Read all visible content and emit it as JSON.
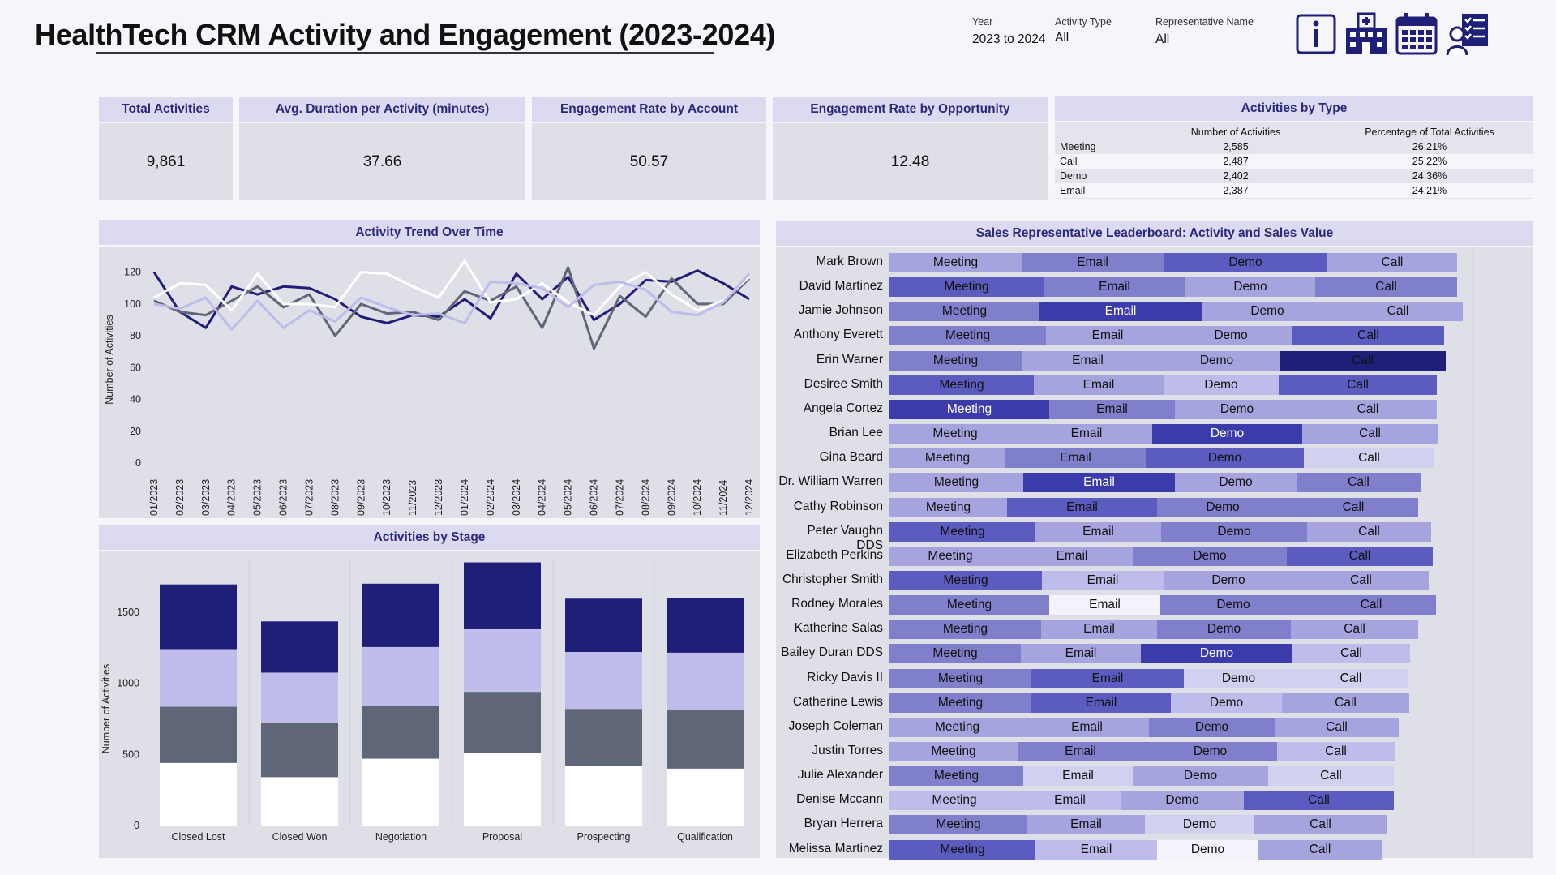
{
  "title": "HealthTech CRM Activity and Engagement (2023-2024)",
  "filters": [
    {
      "label": "Year",
      "value": "2023 to 2024"
    },
    {
      "label": "Activity Type",
      "value": "All"
    },
    {
      "label": "Representative Name",
      "value": "All"
    }
  ],
  "icons": [
    "info-icon",
    "hospital-icon",
    "calendar-icon",
    "checklist-person-icon"
  ],
  "kpis": [
    {
      "label": "Total Activities",
      "value": "9,861"
    },
    {
      "label": "Avg. Duration per Activity (minutes)",
      "value": "37.66"
    },
    {
      "label": "Engagement Rate by Account",
      "value": "50.57"
    },
    {
      "label": "Engagement Rate by Opportunity",
      "value": "12.48"
    }
  ],
  "activities_by_type": {
    "title": "Activities by Type",
    "columns": [
      "",
      "Number of Activities",
      "Percentage of Total Activities"
    ],
    "rows": [
      [
        "Meeting",
        "2,585",
        "26.21%"
      ],
      [
        "Call",
        "2,487",
        "25.22%"
      ],
      [
        "Demo",
        "2,402",
        "24.36%"
      ],
      [
        "Email",
        "2,387",
        "24.21%"
      ]
    ]
  },
  "colors": {
    "navy": "#1f1f7a",
    "lavender": "#bfbbea",
    "slate": "#5f6678",
    "white": "#ffffff",
    "pale": "#eceaf9"
  },
  "chart_data": [
    {
      "type": "line",
      "title": "Activity Trend Over Time",
      "ylabel": "Number of Activities",
      "xlabel": "",
      "ylim": [
        0,
        130
      ],
      "yticks": [
        0,
        20,
        40,
        60,
        80,
        100,
        120
      ],
      "x": [
        "01/2023",
        "02/2023",
        "03/2023",
        "04/2023",
        "05/2023",
        "06/2023",
        "07/2023",
        "08/2023",
        "09/2023",
        "10/2023",
        "11/2023",
        "12/2023",
        "01/2024",
        "02/2024",
        "03/2024",
        "04/2024",
        "05/2024",
        "06/2024",
        "07/2024",
        "08/2024",
        "09/2024",
        "10/2024",
        "11/2024",
        "12/2024"
      ],
      "series": [
        {
          "name": "Call",
          "color": "#1f1f7a",
          "values": [
            120,
            95,
            85,
            111,
            106,
            111,
            110,
            103,
            92,
            88,
            93,
            92,
            103,
            91,
            119,
            103,
            117,
            90,
            100,
            115,
            114,
            121,
            113,
            103
          ]
        },
        {
          "name": "Demo",
          "color": "#5f6678",
          "values": [
            102,
            95,
            93,
            102,
            111,
            98,
            106,
            80,
            100,
            94,
            95,
            90,
            108,
            102,
            111,
            85,
            123,
            72,
            105,
            92,
            116,
            100,
            100,
            116
          ]
        },
        {
          "name": "Email",
          "color": "#ffffff",
          "values": [
            104,
            113,
            112,
            96,
            119,
            100,
            100,
            98,
            120,
            119,
            111,
            104,
            127,
            101,
            103,
            113,
            101,
            93,
            111,
            120,
            106,
            96,
            102,
            117
          ]
        },
        {
          "name": "Meeting",
          "color": "#bfbbea",
          "values": [
            100,
            97,
            104,
            84,
            102,
            85,
            96,
            89,
            104,
            98,
            93,
            94,
            88,
            114,
            113,
            110,
            98,
            112,
            114,
            109,
            95,
            93,
            101,
            119
          ]
        }
      ]
    },
    {
      "type": "bar",
      "stacked": true,
      "title": "Activities by Stage",
      "ylabel": "Number of Activities",
      "xlabel": "",
      "ylim": [
        0,
        1870
      ],
      "yticks": [
        0,
        500,
        1000,
        1500
      ],
      "categories": [
        "Closed Lost",
        "Closed Won",
        "Negotiation",
        "Proposal",
        "Prospecting",
        "Qualification"
      ],
      "series": [
        {
          "name": "Email",
          "color": "#ffffff",
          "values": [
            440,
            340,
            470,
            510,
            420,
            400
          ]
        },
        {
          "name": "Demo",
          "color": "#5f6678",
          "values": [
            395,
            385,
            370,
            430,
            400,
            410
          ]
        },
        {
          "name": "Meeting",
          "color": "#bfbbea",
          "values": [
            405,
            350,
            415,
            440,
            400,
            405
          ]
        },
        {
          "name": "Call",
          "color": "#1f1f7a",
          "values": [
            455,
            360,
            445,
            470,
            375,
            385
          ]
        }
      ]
    },
    {
      "type": "bar",
      "stacked": true,
      "orientation": "horizontal",
      "title": "Sales Representative Leaderboard: Activity and Sales Value",
      "segments": [
        "Meeting",
        "Email",
        "Demo",
        "Call"
      ],
      "reps": [
        {
          "name": "Mark Brown",
          "values": [
            163,
            175,
            202,
            160
          ],
          "shades": [
            3,
            2,
            1,
            3
          ]
        },
        {
          "name": "David Martinez",
          "values": [
            190,
            175,
            160,
            175
          ],
          "shades": [
            1,
            2,
            3,
            2
          ]
        },
        {
          "name": "Jamie Johnson",
          "values": [
            185,
            200,
            162,
            160
          ],
          "shades": [
            2,
            0,
            3,
            3
          ]
        },
        {
          "name": "Anthony Everett",
          "values": [
            193,
            152,
            152,
            187
          ],
          "shades": [
            2,
            3,
            3,
            1
          ]
        },
        {
          "name": "Erin Warner",
          "values": [
            163,
            163,
            155,
            205
          ],
          "shades": [
            2,
            3,
            3,
            0
          ]
        },
        {
          "name": "Desiree Smith",
          "values": [
            178,
            160,
            142,
            195
          ],
          "shades": [
            1,
            3,
            4,
            1
          ]
        },
        {
          "name": "Angela Cortez",
          "values": [
            197,
            155,
            153,
            170
          ],
          "shades": [
            0,
            2,
            3,
            3
          ]
        },
        {
          "name": "Brian Lee",
          "values": [
            162,
            162,
            185,
            167
          ],
          "shades": [
            3,
            3,
            0,
            3
          ]
        },
        {
          "name": "Gina Beard",
          "values": [
            143,
            173,
            195,
            161
          ],
          "shades": [
            3,
            2,
            1,
            5
          ]
        },
        {
          "name": "Dr. William Warren",
          "values": [
            165,
            187,
            150,
            153
          ],
          "shades": [
            3,
            0,
            3,
            2
          ]
        },
        {
          "name": "Cathy Robinson",
          "values": [
            145,
            185,
            162,
            160
          ],
          "shades": [
            3,
            1,
            2,
            2
          ]
        },
        {
          "name": "Peter Vaughn DDS",
          "values": [
            180,
            155,
            180,
            153
          ],
          "shades": [
            1,
            3,
            2,
            3
          ]
        },
        {
          "name": "Elizabeth Perkins",
          "values": [
            150,
            150,
            190,
            180
          ],
          "shades": [
            3,
            3,
            2,
            1
          ]
        },
        {
          "name": "Christopher Smith",
          "values": [
            188,
            150,
            160,
            167
          ],
          "shades": [
            1,
            4,
            3,
            3
          ]
        },
        {
          "name": "Rodney Morales",
          "values": [
            197,
            137,
            180,
            160
          ],
          "shades": [
            2,
            6,
            2,
            2
          ]
        },
        {
          "name": "Katherine Salas",
          "values": [
            187,
            143,
            165,
            157
          ],
          "shades": [
            2,
            3,
            2,
            3
          ]
        },
        {
          "name": "Bailey Duran DDS",
          "values": [
            162,
            148,
            187,
            145
          ],
          "shades": [
            2,
            3,
            0,
            4
          ]
        },
        {
          "name": "Ricky Davis II",
          "values": [
            175,
            188,
            135,
            142
          ],
          "shades": [
            2,
            1,
            5,
            5
          ]
        },
        {
          "name": "Catherine Lewis",
          "values": [
            175,
            172,
            137,
            157
          ],
          "shades": [
            2,
            1,
            4,
            3
          ]
        },
        {
          "name": "Joseph Coleman",
          "values": [
            167,
            153,
            155,
            153
          ],
          "shades": [
            3,
            3,
            2,
            3
          ]
        },
        {
          "name": "Justin Torres",
          "values": [
            158,
            155,
            165,
            145
          ],
          "shades": [
            3,
            2,
            2,
            4
          ]
        },
        {
          "name": "Julie Alexander",
          "values": [
            165,
            135,
            167,
            155
          ],
          "shades": [
            2,
            5,
            3,
            5
          ]
        },
        {
          "name": "Denise Mccann",
          "values": [
            160,
            125,
            152,
            185
          ],
          "shades": [
            4,
            4,
            3,
            1
          ]
        },
        {
          "name": "Bryan Herrera",
          "values": [
            170,
            145,
            135,
            163
          ],
          "shades": [
            2,
            3,
            5,
            3
          ]
        },
        {
          "name": "Melissa Martinez",
          "values": [
            180,
            150,
            125,
            152
          ],
          "shades": [
            1,
            4,
            6,
            3
          ]
        }
      ]
    }
  ]
}
